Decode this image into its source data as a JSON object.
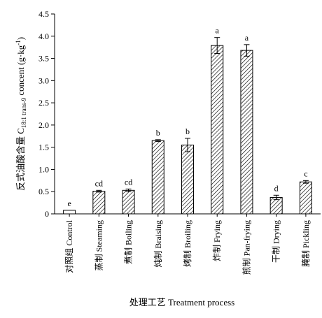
{
  "chart_data": {
    "type": "bar",
    "xlabel": "处理工艺 Treatment process",
    "ylabel": "反式油酸含量 C18:1 trans-9 concent (g·kg⁻¹)",
    "ylabel_parts": {
      "pre": "反式油酸含量 C",
      "sub": "18:1 trans-9",
      "mid": " concent (g·kg",
      "sup": "-1",
      "post": ")"
    },
    "ylim": [
      0,
      4.5
    ],
    "yticks": [
      "0",
      "0.5",
      "1.0",
      "1.5",
      "2.0",
      "2.5",
      "3.0",
      "3.5",
      "4.0",
      "4.5"
    ],
    "categories": [
      "对照组 Control",
      "蒸制 Steaming",
      "煮制 Boiling",
      "炖制 Braising",
      "烤制 Broiling",
      "炸制 Frying",
      "煎制 Pan-frying",
      "干制 Drying",
      "腌制 Pickling"
    ],
    "values": [
      0.08,
      0.51,
      0.53,
      1.65,
      1.55,
      3.79,
      3.68,
      0.37,
      0.72
    ],
    "errors": [
      0.0,
      0.02,
      0.03,
      0.02,
      0.15,
      0.18,
      0.13,
      0.05,
      0.03
    ],
    "significance_letters": [
      "e",
      "cd",
      "cd",
      "b",
      "b",
      "a",
      "a",
      "d",
      "c"
    ],
    "hatched": [
      false,
      true,
      true,
      true,
      true,
      true,
      true,
      true,
      true
    ],
    "grid": false,
    "legend": "none"
  }
}
